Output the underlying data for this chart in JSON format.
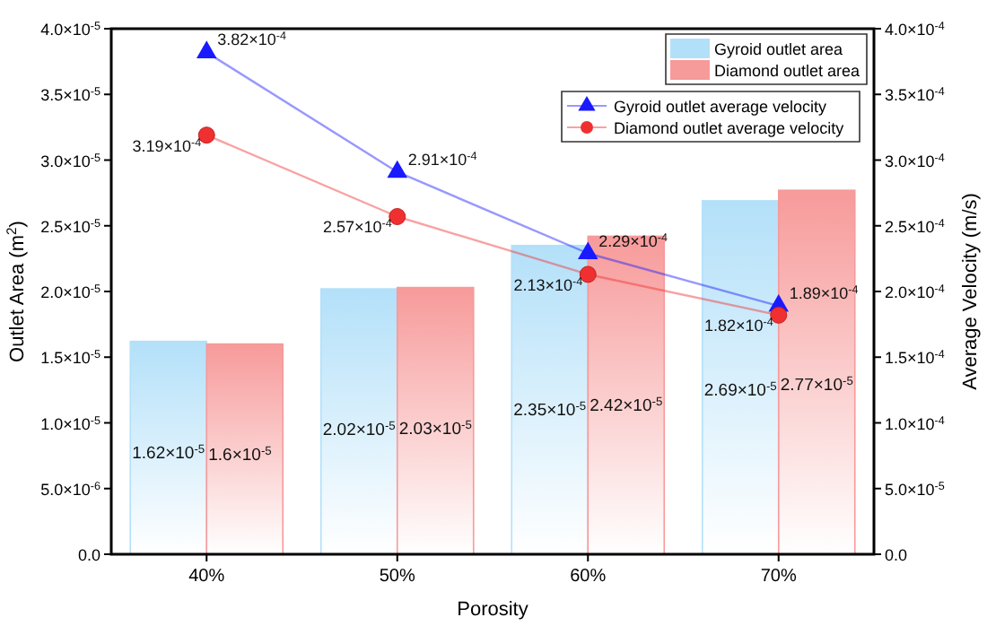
{
  "chart_data": {
    "type": "bar",
    "xlabel": "Porosity",
    "ylabel": "Outlet Area (m$^{2}$)",
    "y2label": "Average Velocity (m/s)",
    "categories": [
      "40%",
      "50%",
      "60%",
      "70%"
    ],
    "series": [
      {
        "name": "Gyroid outlet area",
        "color": "#b3e0f9",
        "values": [
          1.62e-05,
          2.02e-05,
          2.35e-05,
          2.69e-05
        ],
        "value_labels": [
          "1.62×10$^{-5}$",
          "2.02×10$^{-5}$",
          "2.35×10$^{-5}$",
          "2.69×10$^{-5}$"
        ]
      },
      {
        "name": "Diamond outlet area",
        "color": "#f79a9a",
        "values": [
          1.6e-05,
          2.03e-05,
          2.42e-05,
          2.77e-05
        ],
        "value_labels": [
          "1.6×10$^{-5}$",
          "2.03×10$^{-5}$",
          "2.42×10$^{-5}$",
          "2.77×10$^{-5}$"
        ]
      },
      {
        "name": "Gyroid outlet average velocity",
        "type": "line",
        "axis": "y2",
        "color": "#1a1aff",
        "marker": "triangle",
        "values": [
          0.000382,
          0.000291,
          0.000229,
          0.000189
        ],
        "value_labels": [
          "3.82×10$^{-4}$",
          "2.91×10$^{-4}$",
          "2.29×10$^{-4}$",
          "1.89×10$^{-4}$"
        ]
      },
      {
        "name": "Diamond outlet average velocity",
        "type": "line",
        "axis": "y2",
        "color": "#f03030",
        "marker": "circle",
        "values": [
          0.000319,
          0.000257,
          0.000213,
          0.000182
        ],
        "value_labels": [
          "3.19×10$^{-4}$",
          "2.57×10$^{-4}$",
          "2.13×10$^{-4}$",
          "1.82×10$^{-4}$"
        ]
      }
    ],
    "ylim": [
      0,
      4e-05
    ],
    "yticks": [
      {
        "value": 0,
        "label": "0.0"
      },
      {
        "value": 5e-06,
        "label": "5.0×10$^{-6}$"
      },
      {
        "value": 1e-05,
        "label": "1.0×10$^{-5}$"
      },
      {
        "value": 1.5e-05,
        "label": "1.5×10$^{-5}$"
      },
      {
        "value": 2e-05,
        "label": "2.0×10$^{-5}$"
      },
      {
        "value": 2.5e-05,
        "label": "2.5×10$^{-5}$"
      },
      {
        "value": 3e-05,
        "label": "3.0×10$^{-5}$"
      },
      {
        "value": 3.5e-05,
        "label": "3.5×10$^{-5}$"
      },
      {
        "value": 4e-05,
        "label": "4.0×10$^{-5}$"
      }
    ],
    "y2lim": [
      0,
      0.0004
    ],
    "y2ticks": [
      {
        "value": 0,
        "label": "0.0"
      },
      {
        "value": 5e-05,
        "label": "5.0×10$^{-5}$"
      },
      {
        "value": 0.0001,
        "label": "1.0×10$^{-4}$"
      },
      {
        "value": 0.00015,
        "label": "1.5×10$^{-4}$"
      },
      {
        "value": 0.0002,
        "label": "2.0×10$^{-4}$"
      },
      {
        "value": 0.00025,
        "label": "2.5×10$^{-4}$"
      },
      {
        "value": 0.0003,
        "label": "3.0×10$^{-4}$"
      },
      {
        "value": 0.00035,
        "label": "3.5×10$^{-4}$"
      },
      {
        "value": 0.0004,
        "label": "4.0×10$^{-4}$"
      }
    ],
    "legend": "top right",
    "grid": false
  }
}
